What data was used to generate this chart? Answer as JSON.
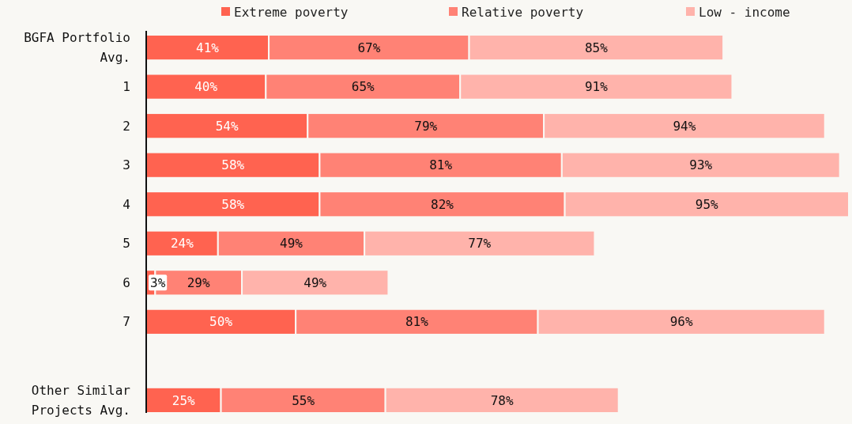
{
  "chart_data": {
    "type": "bar",
    "orientation": "horizontal",
    "stacked": true,
    "legend": "top",
    "categories": [
      "BGFA Portfolio Avg.",
      "1",
      "2",
      "3",
      "4",
      "5",
      "6",
      "7",
      null,
      "Other Similar Projects Avg."
    ],
    "series": [
      {
        "name": "Extreme poverty",
        "color": "#ff6350",
        "values": [
          41,
          40,
          54,
          58,
          58,
          24,
          3,
          50,
          null,
          25
        ],
        "value_labels": [
          "41%",
          "40%",
          "54%",
          "58%",
          "58%",
          "24%",
          "3%",
          "50%",
          null,
          "25%"
        ]
      },
      {
        "name": "Relative poverty",
        "color": "#ff8275",
        "values": [
          67,
          65,
          79,
          81,
          82,
          49,
          29,
          81,
          null,
          55
        ],
        "value_labels": [
          "67%",
          "65%",
          "79%",
          "81%",
          "82%",
          "49%",
          "29%",
          "81%",
          null,
          "55%"
        ]
      },
      {
        "name": "Low - income",
        "color": "#ffb3ab",
        "values": [
          85,
          91,
          94,
          93,
          95,
          77,
          49,
          96,
          null,
          78
        ],
        "value_labels": [
          "85%",
          "91%",
          "94%",
          "93%",
          "95%",
          "77%",
          "49%",
          "96%",
          null,
          "78%"
        ]
      }
    ]
  }
}
